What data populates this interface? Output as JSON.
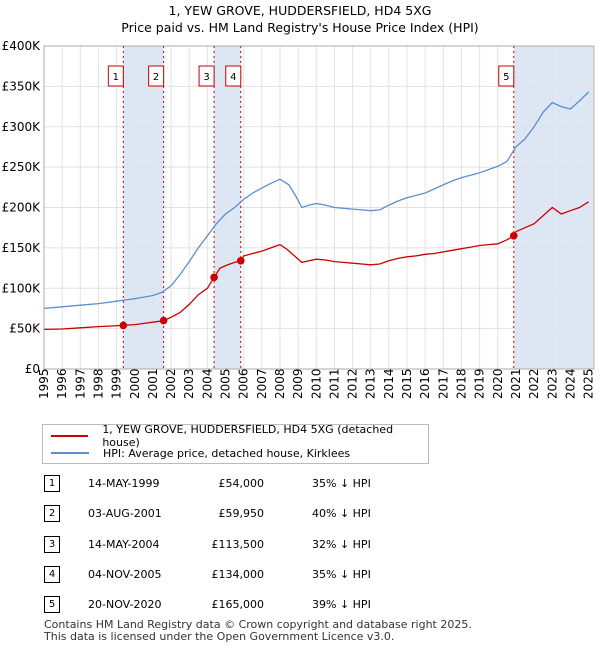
{
  "title_line1": "1, YEW GROVE, HUDDERSFIELD, HD4 5XG",
  "title_line2": "Price paid vs. HM Land Registry's House Price Index (HPI)",
  "colors": {
    "property": "#cc0000",
    "hpi": "#5b8fcf",
    "shade": "#dde6f5",
    "vline": "#cc0000"
  },
  "chart_data": {
    "type": "line",
    "title": "1, YEW GROVE, HUDDERSFIELD, HD4 5XG — Price paid vs. HM Land Registry's House Price Index (HPI)",
    "xlabel": "",
    "ylabel": "",
    "xlim": [
      1995,
      2025.3
    ],
    "ylim": [
      0,
      400000
    ],
    "y_ticks": [
      0,
      50000,
      100000,
      150000,
      200000,
      250000,
      300000,
      350000,
      400000
    ],
    "y_tick_labels": [
      "£0",
      "£50K",
      "£100K",
      "£150K",
      "£200K",
      "£250K",
      "£300K",
      "£350K",
      "£400K"
    ],
    "x_ticks": [
      1995,
      1996,
      1997,
      1998,
      1999,
      2000,
      2001,
      2002,
      2003,
      2004,
      2005,
      2006,
      2007,
      2008,
      2009,
      2010,
      2011,
      2012,
      2013,
      2014,
      2015,
      2016,
      2017,
      2018,
      2019,
      2020,
      2021,
      2022,
      2023,
      2024,
      2025
    ],
    "x_tick_labels": [
      "1995",
      "1996",
      "1997",
      "1998",
      "1999",
      "2000",
      "2001",
      "2002",
      "2003",
      "2004",
      "2005",
      "2006",
      "2007",
      "2008",
      "2009",
      "2010",
      "2011",
      "2012",
      "2013",
      "2014",
      "2015",
      "2016",
      "2017",
      "2018",
      "2019",
      "2020",
      "2021",
      "2022",
      "2023",
      "2024",
      "2025"
    ],
    "grid": true,
    "series": [
      {
        "name": "1, YEW GROVE, HUDDERSFIELD, HD4 5XG (detached house)",
        "x": [
          1995.0,
          1996.0,
          1997.0,
          1998.0,
          1999.37,
          2000.0,
          2000.5,
          2001.0,
          2001.59,
          2002.0,
          2002.5,
          2003.0,
          2003.5,
          2004.0,
          2004.37,
          2004.7,
          2005.0,
          2005.5,
          2005.84,
          2006.0,
          2006.5,
          2007.0,
          2007.5,
          2008.0,
          2008.4,
          2008.8,
          2009.2,
          2009.6,
          2010.0,
          2010.5,
          2011.0,
          2011.5,
          2012.0,
          2012.5,
          2013.0,
          2013.5,
          2014.0,
          2014.5,
          2015.0,
          2015.5,
          2016.0,
          2016.5,
          2017.0,
          2017.5,
          2018.0,
          2018.5,
          2019.0,
          2019.5,
          2020.0,
          2020.5,
          2020.88,
          2021.0,
          2021.5,
          2022.0,
          2022.5,
          2023.0,
          2023.5,
          2024.0,
          2024.5,
          2025.0
        ],
        "values": [
          49000,
          49500,
          51000,
          52500,
          54000,
          55000,
          56500,
          58000,
          59950,
          64000,
          70000,
          80000,
          92000,
          100000,
          113500,
          125000,
          128000,
          132000,
          134000,
          140000,
          143000,
          146000,
          150000,
          154000,
          148000,
          140000,
          132000,
          134000,
          136000,
          135000,
          133000,
          132000,
          131000,
          130000,
          129000,
          130000,
          134000,
          137000,
          139000,
          140000,
          142000,
          143000,
          145000,
          147000,
          149000,
          151000,
          153000,
          154000,
          155000,
          160000,
          165000,
          170000,
          175000,
          180000,
          190000,
          200000,
          192000,
          196000,
          200000,
          207000
        ]
      },
      {
        "name": "HPI: Average price, detached house, Kirklees",
        "x": [
          1995.0,
          1996.0,
          1997.0,
          1998.0,
          1999.0,
          2000.0,
          2000.5,
          2001.0,
          2001.5,
          2002.0,
          2002.5,
          2003.0,
          2003.5,
          2004.0,
          2004.5,
          2005.0,
          2005.5,
          2006.0,
          2006.5,
          2007.0,
          2007.5,
          2008.0,
          2008.5,
          2008.9,
          2009.2,
          2009.6,
          2010.0,
          2010.5,
          2011.0,
          2011.5,
          2012.0,
          2012.5,
          2013.0,
          2013.5,
          2014.0,
          2014.5,
          2015.0,
          2015.5,
          2016.0,
          2016.5,
          2017.0,
          2017.5,
          2018.0,
          2018.5,
          2019.0,
          2019.5,
          2020.0,
          2020.5,
          2021.0,
          2021.5,
          2022.0,
          2022.5,
          2023.0,
          2023.5,
          2024.0,
          2024.5,
          2025.0
        ],
        "values": [
          75000,
          77000,
          79000,
          81000,
          84000,
          87000,
          89000,
          91000,
          95000,
          103000,
          117000,
          133000,
          150000,
          165000,
          180000,
          192000,
          200000,
          210000,
          218000,
          224000,
          230000,
          235000,
          228000,
          213000,
          200000,
          203000,
          205000,
          203000,
          200000,
          199000,
          198000,
          197000,
          196000,
          197000,
          203000,
          208000,
          212000,
          215000,
          218000,
          223000,
          228000,
          233000,
          237000,
          240000,
          243000,
          247000,
          251000,
          257000,
          275000,
          285000,
          300000,
          318000,
          330000,
          325000,
          322000,
          332000,
          343000
        ]
      }
    ],
    "sales": [
      {
        "label": "1",
        "x": 1999.37,
        "price": 54000
      },
      {
        "label": "2",
        "x": 2001.59,
        "price": 59950
      },
      {
        "label": "3",
        "x": 2004.37,
        "price": 113500
      },
      {
        "label": "4",
        "x": 2005.84,
        "price": 134000
      },
      {
        "label": "5",
        "x": 2020.88,
        "price": 165000
      }
    ],
    "shaded_spans": [
      [
        1999.37,
        2001.59
      ],
      [
        2004.37,
        2005.84
      ],
      [
        2020.88,
        2025.3
      ]
    ]
  },
  "legend": {
    "property_label": "1, YEW GROVE, HUDDERSFIELD, HD4 5XG (detached house)",
    "hpi_label": "HPI: Average price, detached house, Kirklees"
  },
  "transactions": [
    {
      "num": "1",
      "date": "14-MAY-1999",
      "price": "£54,000",
      "pct": "35% ↓ HPI"
    },
    {
      "num": "2",
      "date": "03-AUG-2001",
      "price": "£59,950",
      "pct": "40% ↓ HPI"
    },
    {
      "num": "3",
      "date": "14-MAY-2004",
      "price": "£113,500",
      "pct": "32% ↓ HPI"
    },
    {
      "num": "4",
      "date": "04-NOV-2005",
      "price": "£134,000",
      "pct": "35% ↓ HPI"
    },
    {
      "num": "5",
      "date": "20-NOV-2020",
      "price": "£165,000",
      "pct": "39% ↓ HPI"
    }
  ],
  "footer_line1": "Contains HM Land Registry data © Crown copyright and database right 2025.",
  "footer_line2": "This data is licensed under the Open Government Licence v3.0."
}
